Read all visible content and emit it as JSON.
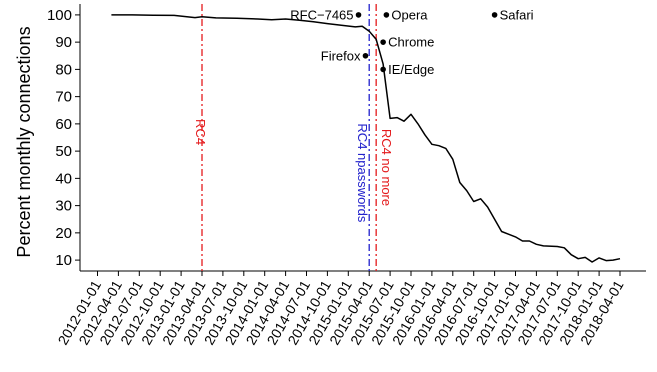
{
  "chart_data": {
    "type": "line",
    "ylabel": "Percent monthly connections",
    "xlabel": "",
    "ylim": [
      6,
      104
    ],
    "yticks": [
      10,
      20,
      30,
      40,
      50,
      60,
      70,
      80,
      90,
      100
    ],
    "xticks": [
      "2012-01-01",
      "2012-04-01",
      "2012-07-01",
      "2012-10-01",
      "2013-01-01",
      "2013-04-01",
      "2013-07-01",
      "2013-10-01",
      "2014-01-01",
      "2014-04-01",
      "2014-07-01",
      "2014-10-01",
      "2015-01-01",
      "2015-04-01",
      "2015-07-01",
      "2015-10-01",
      "2016-01-01",
      "2016-04-01",
      "2016-07-01",
      "2016-10-01",
      "2017-01-01",
      "2017-04-01",
      "2017-07-01",
      "2017-10-01",
      "2018-01-01",
      "2018-04-01"
    ],
    "grid": false,
    "series": [
      {
        "values": [
          [
            "2012-03-01",
            100
          ],
          [
            "2012-06-01",
            100
          ],
          [
            "2012-09-01",
            99.9
          ],
          [
            "2012-12-01",
            99.8
          ],
          [
            "2013-03-01",
            99.0
          ],
          [
            "2013-04-01",
            99.3
          ],
          [
            "2013-06-01",
            98.9
          ],
          [
            "2013-09-01",
            98.8
          ],
          [
            "2013-12-01",
            98.5
          ],
          [
            "2014-02-01",
            98.2
          ],
          [
            "2014-04-01",
            98.5
          ],
          [
            "2014-06-01",
            98.0
          ],
          [
            "2014-08-01",
            97.5
          ],
          [
            "2014-10-01",
            96.8
          ],
          [
            "2014-12-01",
            96.2
          ],
          [
            "2015-02-01",
            95.6
          ],
          [
            "2015-03-01",
            95.8
          ],
          [
            "2015-04-01",
            94.0
          ],
          [
            "2015-05-01",
            91.0
          ],
          [
            "2015-06-01",
            82.0
          ],
          [
            "2015-07-01",
            62.0
          ],
          [
            "2015-08-01",
            62.3
          ],
          [
            "2015-09-01",
            61.0
          ],
          [
            "2015-10-01",
            63.5
          ],
          [
            "2015-11-01",
            60.0
          ],
          [
            "2015-12-01",
            56.0
          ],
          [
            "2016-01-01",
            52.5
          ],
          [
            "2016-02-01",
            52.0
          ],
          [
            "2016-03-01",
            51.0
          ],
          [
            "2016-04-01",
            47.0
          ],
          [
            "2016-05-01",
            38.5
          ],
          [
            "2016-06-01",
            35.5
          ],
          [
            "2016-07-01",
            31.5
          ],
          [
            "2016-08-01",
            32.5
          ],
          [
            "2016-09-01",
            29.5
          ],
          [
            "2016-10-01",
            25.0
          ],
          [
            "2016-11-01",
            20.5
          ],
          [
            "2016-12-01",
            19.5
          ],
          [
            "2017-01-01",
            18.5
          ],
          [
            "2017-02-01",
            17.0
          ],
          [
            "2017-03-01",
            17.0
          ],
          [
            "2017-04-01",
            15.8
          ],
          [
            "2017-05-01",
            15.2
          ],
          [
            "2017-07-01",
            15.0
          ],
          [
            "2017-08-01",
            14.5
          ],
          [
            "2017-09-01",
            12.0
          ],
          [
            "2017-10-01",
            10.5
          ],
          [
            "2017-11-01",
            11.0
          ],
          [
            "2017-12-01",
            9.3
          ],
          [
            "2018-01-01",
            10.8
          ],
          [
            "2018-02-01",
            9.8
          ],
          [
            "2018-03-01",
            10.0
          ],
          [
            "2018-04-01",
            10.5
          ]
        ],
        "color": "#000000"
      }
    ],
    "vlines": [
      {
        "x": "2013-04-01",
        "label": "RC4",
        "color": "#e41a1c",
        "style": "dashdot"
      },
      {
        "x": "2015-04-01",
        "label": "RC4 npasswords",
        "color": "#2222cc",
        "style": "dashdot"
      },
      {
        "x": "2015-05-01",
        "label": "RC4 no more",
        "color": "#e41a1c",
        "style": "dashdot"
      }
    ],
    "annotations": [
      {
        "x": "2015-02-15",
        "y": 100,
        "label": "RFC−7465",
        "side": "left"
      },
      {
        "x": "2015-06-15",
        "y": 100,
        "label": "Opera",
        "side": "right"
      },
      {
        "x": "2015-06-01",
        "y": 90,
        "label": "Chrome",
        "side": "right"
      },
      {
        "x": "2015-03-15",
        "y": 85,
        "label": "Firefox",
        "side": "left"
      },
      {
        "x": "2015-06-01",
        "y": 80,
        "label": "IE/Edge",
        "side": "right"
      },
      {
        "x": "2016-10-01",
        "y": 100,
        "label": "Safari",
        "side": "right"
      }
    ]
  }
}
